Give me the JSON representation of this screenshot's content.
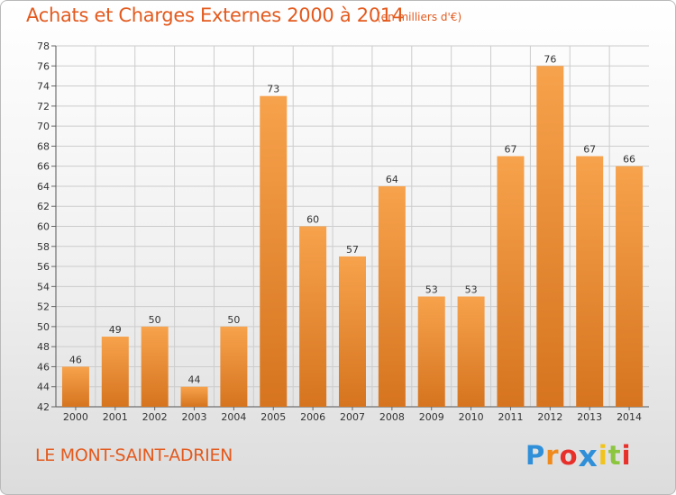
{
  "header": {
    "title": "Achats et Charges Externes 2000 à 2014",
    "subtitle": "(en milliers d'€)"
  },
  "footer": {
    "commune": "LE MONT-SAINT-ADRIEN",
    "brand": {
      "letters": [
        "P",
        "r",
        "o",
        "x",
        "i",
        "t",
        "i"
      ],
      "colors": [
        "#2f8fd8",
        "#f08a1c",
        "#e8302a",
        "#2f8fd8",
        "#f2c318",
        "#8cc63f",
        "#e8302a"
      ]
    }
  },
  "colors": {
    "accent": "#e35a1e",
    "bar_top": "#f7a24c",
    "bar_bottom": "#d6741f",
    "grid": "#cccccc"
  },
  "chart_data": {
    "type": "bar",
    "categories": [
      "2000",
      "2001",
      "2002",
      "2003",
      "2004",
      "2005",
      "2006",
      "2007",
      "2008",
      "2009",
      "2010",
      "2011",
      "2012",
      "2013",
      "2014"
    ],
    "values": [
      46,
      49,
      50,
      44,
      50,
      73,
      60,
      57,
      64,
      53,
      53,
      67,
      76,
      67,
      66
    ],
    "ylim": [
      42,
      78
    ],
    "yticks": [
      42,
      44,
      46,
      48,
      50,
      52,
      54,
      56,
      58,
      60,
      62,
      64,
      66,
      68,
      70,
      72,
      74,
      76,
      78
    ],
    "grid": true,
    "data_labels": true
  }
}
